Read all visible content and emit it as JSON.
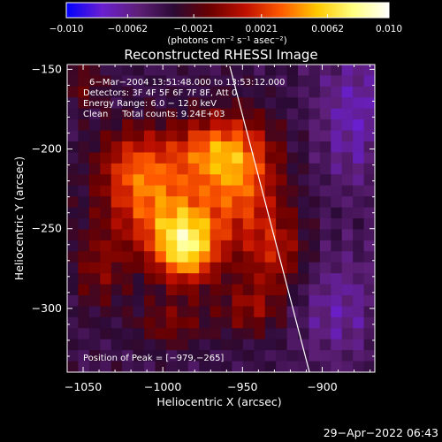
{
  "chart_data": {
    "type": "heatmap",
    "title": "Reconstructed RHESSI Image",
    "xlabel": "Heliocentric X (arcsec)",
    "ylabel": "Heliocentric Y (arcsec)",
    "xlim": [
      -1060,
      -867
    ],
    "ylim": [
      -340,
      -147
    ],
    "x_ticks": [
      -1050,
      -1000,
      -950,
      -900
    ],
    "x_tick_labels": [
      "−1050",
      "−1000",
      "−950",
      "−900"
    ],
    "y_ticks": [
      -150,
      -200,
      -250,
      -300
    ],
    "y_tick_labels": [
      "−150",
      "−200",
      "−250",
      "−300"
    ],
    "colorbar": {
      "range": [
        -0.01,
        0.01
      ],
      "tick_values": [
        -0.01,
        -0.0062,
        -0.0021,
        0.0021,
        0.0062,
        0.01
      ],
      "tick_labels": [
        "−0.010",
        "−0.0062",
        "−0.0021",
        "0.0021",
        "0.0062",
        "0.010"
      ],
      "unit_label": "(photons cm⁻² s⁻¹ asec⁻²)",
      "colors": [
        "#0000ff",
        "#6a1fd0",
        "#5e1f78",
        "#2b0a35",
        "#6a0000",
        "#c01000",
        "#ff5a00",
        "#ffc800",
        "#ffff80",
        "#ffffff"
      ]
    },
    "annotations": [
      "6−Mar−2004 13:51:48.000 to 13:53:12.000",
      "Detectors: 3F 4F 5F 6F 7F 8F, Att 0",
      "Energy Range: 6.0 − 12.0 keV",
      "Clean     Total counts: 9.24E+03"
    ],
    "peak_label": "Position of Peak = [−979,−265]",
    "peak": [
      -979,
      -265
    ],
    "limb_line": [
      [
        -958,
        -148
      ],
      [
        -908,
        -340
      ]
    ],
    "grid": false,
    "image_grid": {
      "cols": 28,
      "rows": 28,
      "background": -0.004,
      "blobs": [
        {
          "x": -985,
          "y": -262,
          "amp": 0.0095,
          "sx": 14,
          "sy": 16
        },
        {
          "x": -1003,
          "y": -235,
          "amp": 0.0062,
          "sx": 22,
          "sy": 24
        },
        {
          "x": -952,
          "y": -220,
          "amp": 0.0068,
          "sx": 18,
          "sy": 26
        },
        {
          "x": -970,
          "y": -200,
          "amp": 0.0048,
          "sx": 20,
          "sy": 14
        },
        {
          "x": -1020,
          "y": -210,
          "amp": 0.004,
          "sx": 16,
          "sy": 18
        },
        {
          "x": -930,
          "y": -265,
          "amp": 0.0044,
          "sx": 14,
          "sy": 18
        },
        {
          "x": -1040,
          "y": -275,
          "amp": 0.003,
          "sx": 12,
          "sy": 18
        },
        {
          "x": -945,
          "y": -300,
          "amp": 0.0035,
          "sx": 14,
          "sy": 12
        },
        {
          "x": -995,
          "y": -310,
          "amp": 0.003,
          "sx": 16,
          "sy": 10
        },
        {
          "x": -1050,
          "y": -160,
          "amp": 0.0025,
          "sx": 10,
          "sy": 10
        },
        {
          "x": -880,
          "y": -180,
          "amp": -0.003,
          "sx": 16,
          "sy": 30
        },
        {
          "x": -890,
          "y": -300,
          "amp": -0.0025,
          "sx": 18,
          "sy": 24
        }
      ]
    }
  },
  "footer": {
    "date": "29−Apr−2022 06:43"
  }
}
